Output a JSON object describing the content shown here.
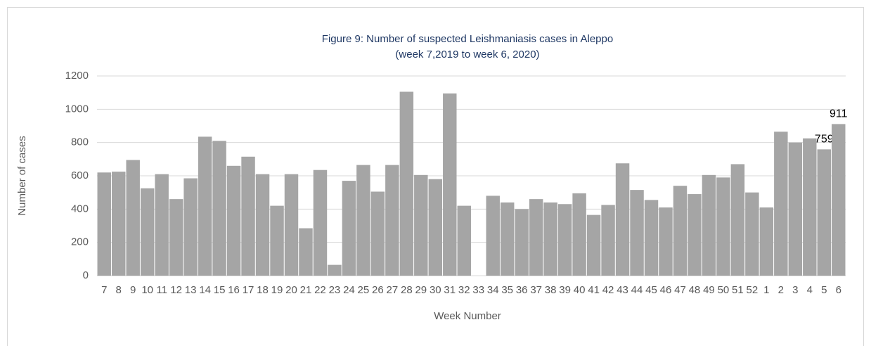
{
  "chart_data": {
    "type": "bar",
    "title": "Figure 9: Number of suspected Leishmaniasis cases in Aleppo",
    "subtitle": "(week 7,2019 to week 6, 2020)",
    "y_label": "Number of cases",
    "x_label": "Week Number",
    "categories": [
      "7",
      "8",
      "9",
      "10",
      "11",
      "12",
      "13",
      "14",
      "15",
      "16",
      "17",
      "18",
      "19",
      "20",
      "21",
      "22",
      "23",
      "24",
      "25",
      "26",
      "27",
      "28",
      "29",
      "30",
      "31",
      "32",
      "33",
      "34",
      "35",
      "36",
      "37",
      "38",
      "39",
      "40",
      "41",
      "42",
      "43",
      "44",
      "45",
      "46",
      "47",
      "48",
      "49",
      "50",
      "51",
      "52",
      "1",
      "2",
      "3",
      "4",
      "5",
      "6"
    ],
    "values": [
      620,
      625,
      695,
      525,
      610,
      460,
      585,
      835,
      810,
      660,
      715,
      610,
      420,
      610,
      285,
      635,
      65,
      570,
      665,
      505,
      665,
      1105,
      605,
      580,
      1095,
      420,
      null,
      480,
      440,
      400,
      460,
      440,
      430,
      495,
      365,
      425,
      675,
      515,
      455,
      410,
      540,
      490,
      605,
      590,
      670,
      500,
      410,
      865,
      800,
      825,
      759,
      911
    ],
    "value_labels": [
      null,
      null,
      null,
      null,
      null,
      null,
      null,
      null,
      null,
      null,
      null,
      null,
      null,
      null,
      null,
      null,
      null,
      null,
      null,
      null,
      null,
      null,
      null,
      null,
      null,
      null,
      null,
      null,
      null,
      null,
      null,
      null,
      null,
      null,
      null,
      null,
      null,
      null,
      null,
      null,
      null,
      null,
      null,
      null,
      null,
      null,
      null,
      null,
      null,
      null,
      "759",
      "911"
    ],
    "color": "#a5a5a5",
    "ylim": [
      0,
      1200
    ],
    "yticks": [
      0,
      200,
      400,
      600,
      800,
      1000,
      1200
    ],
    "grid": true
  }
}
